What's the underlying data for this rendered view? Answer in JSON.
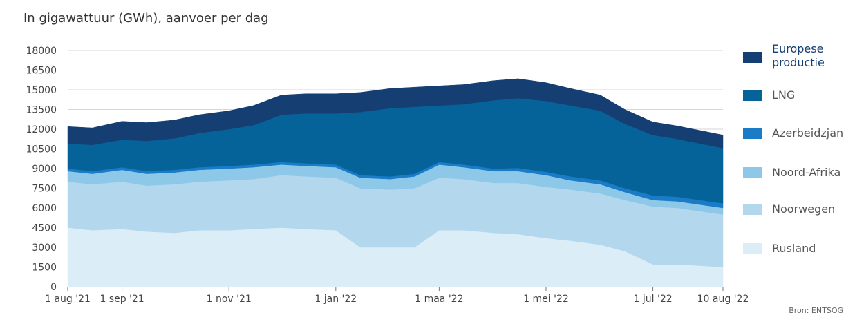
{
  "title": "In gigawattuur (GWh), aanvoer per dag",
  "source": "Bron: ENTSOG",
  "chart_data": {
    "type": "area",
    "stacked": true,
    "ylim": [
      0,
      18000
    ],
    "yticks": [
      0,
      1500,
      3000,
      4500,
      6000,
      7500,
      9000,
      10500,
      12000,
      13500,
      15000,
      16500,
      18000
    ],
    "x": [
      "2021-08-01",
      "2021-08-15",
      "2021-09-01",
      "2021-09-15",
      "2021-10-01",
      "2021-10-15",
      "2021-11-01",
      "2021-11-15",
      "2021-12-01",
      "2021-12-15",
      "2022-01-01",
      "2022-01-15",
      "2022-02-01",
      "2022-02-15",
      "2022-03-01",
      "2022-03-15",
      "2022-04-01",
      "2022-04-15",
      "2022-05-01",
      "2022-05-15",
      "2022-06-01",
      "2022-06-15",
      "2022-07-01",
      "2022-07-15",
      "2022-08-10"
    ],
    "xtick_labels": [
      {
        "date": "2021-08-01",
        "label": "1 aug '21"
      },
      {
        "date": "2021-09-01",
        "label": "1 sep '21"
      },
      {
        "date": "2021-11-01",
        "label": "1 nov '21"
      },
      {
        "date": "2022-01-01",
        "label": "1 jan '22"
      },
      {
        "date": "2022-03-01",
        "label": "1 maa '22"
      },
      {
        "date": "2022-05-01",
        "label": "1 mei '22"
      },
      {
        "date": "2022-07-01",
        "label": "1 jul '22"
      },
      {
        "date": "2022-08-10",
        "label": "10 aug '22"
      }
    ],
    "legend_position": "right",
    "series": [
      {
        "name": "Rusland",
        "color": "#dbeef8",
        "values": [
          4500,
          4300,
          4400,
          4200,
          4100,
          4300,
          4300,
          4400,
          4500,
          4400,
          4300,
          3000,
          3000,
          3000,
          4300,
          4300,
          4100,
          4000,
          3700,
          3500,
          3200,
          2700,
          1700,
          1700,
          1500
        ]
      },
      {
        "name": "Noorwegen",
        "color": "#b3d8ee",
        "values": [
          3500,
          3500,
          3600,
          3500,
          3700,
          3700,
          3800,
          3800,
          4000,
          4000,
          4000,
          4500,
          4400,
          4500,
          4000,
          3900,
          3800,
          3900,
          3900,
          3900,
          3900,
          3900,
          4400,
          4300,
          4000
        ]
      },
      {
        "name": "Noord-Afrika",
        "color": "#8ec8e9",
        "values": [
          800,
          800,
          900,
          900,
          900,
          900,
          900,
          900,
          800,
          800,
          800,
          800,
          800,
          900,
          1000,
          900,
          900,
          900,
          900,
          700,
          700,
          600,
          500,
          500,
          500
        ]
      },
      {
        "name": "Azerbeidzjan",
        "color": "#1a7cc7",
        "values": [
          200,
          200,
          200,
          200,
          200,
          200,
          200,
          200,
          200,
          200,
          200,
          200,
          200,
          200,
          200,
          200,
          200,
          250,
          250,
          300,
          300,
          300,
          350,
          350,
          350
        ]
      },
      {
        "name": "LNG",
        "color": "#05639a",
        "values": [
          1900,
          2000,
          2100,
          2300,
          2400,
          2600,
          2800,
          3000,
          3600,
          3800,
          3900,
          4800,
          5200,
          5100,
          4300,
          4600,
          5200,
          5300,
          5400,
          5400,
          5300,
          4900,
          4600,
          4400,
          4200
        ]
      },
      {
        "name": "Europese productie",
        "color": "#153f73",
        "values": [
          1300,
          1300,
          1400,
          1400,
          1400,
          1400,
          1400,
          1500,
          1500,
          1500,
          1500,
          1500,
          1500,
          1500,
          1500,
          1500,
          1500,
          1500,
          1400,
          1300,
          1200,
          1100,
          1000,
          1000,
          1000
        ]
      }
    ]
  }
}
